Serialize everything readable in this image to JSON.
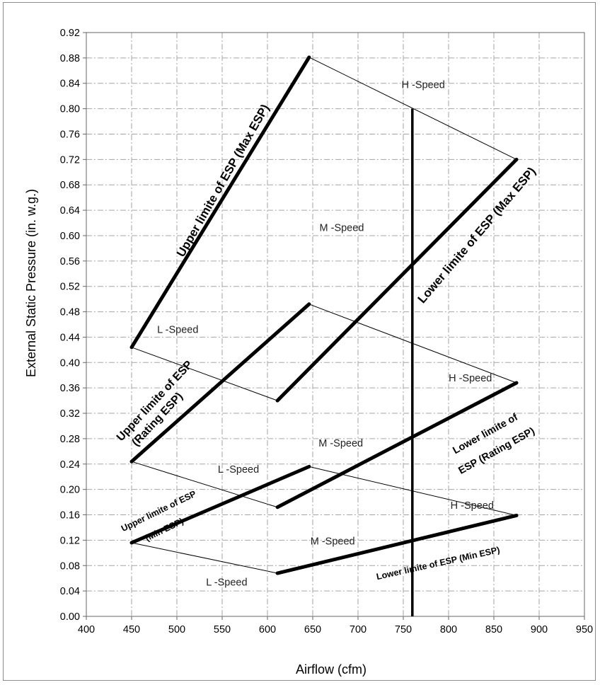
{
  "chart_data": {
    "type": "line",
    "title": "",
    "xlabel": "Airflow (cfm)",
    "ylabel": "External Static Pressure (in. w.g.)",
    "xlim": [
      400,
      950
    ],
    "ylim": [
      0.0,
      0.92
    ],
    "xticks": [
      "400",
      "450",
      "500",
      "550",
      "600",
      "650",
      "700",
      "750",
      "800",
      "850",
      "900",
      "950"
    ],
    "yticks": [
      "0.00",
      "0.04",
      "0.08",
      "0.12",
      "0.16",
      "0.20",
      "0.24",
      "0.28",
      "0.32",
      "0.36",
      "0.40",
      "0.44",
      "0.48",
      "0.52",
      "0.56",
      "0.60",
      "0.64",
      "0.68",
      "0.72",
      "0.76",
      "0.80",
      "0.84",
      "0.88",
      "0.92"
    ],
    "grid": true,
    "limit_lines": [
      {
        "label": "Upper limite of ESP (Max ESP)",
        "points": [
          [
            450,
            0.424
          ],
          [
            646,
            0.881
          ]
        ]
      },
      {
        "label": "Lower limite of ESP (Max ESP)",
        "points": [
          [
            611,
            0.34
          ],
          [
            875,
            0.72
          ]
        ]
      },
      {
        "label": "Upper limite of ESP (Rating ESP)",
        "points": [
          [
            450,
            0.244
          ],
          [
            646,
            0.492
          ]
        ]
      },
      {
        "label": "Lower limite of ESP (Rating ESP)",
        "points": [
          [
            611,
            0.172
          ],
          [
            875,
            0.368
          ]
        ]
      },
      {
        "label": "Upper limite of ESP (Min ESP)",
        "points": [
          [
            450,
            0.116
          ],
          [
            646,
            0.236
          ]
        ]
      },
      {
        "label": "Lower limite of ESP (Min ESP)",
        "points": [
          [
            611,
            0.068
          ],
          [
            875,
            0.159
          ]
        ]
      }
    ],
    "fan_curves": [
      {
        "points": [
          [
            646,
            0.881
          ],
          [
            875,
            0.72
          ]
        ]
      },
      {
        "points": [
          [
            450,
            0.424
          ],
          [
            611,
            0.34
          ]
        ]
      },
      {
        "points": [
          [
            646,
            0.492
          ],
          [
            875,
            0.368
          ]
        ]
      },
      {
        "points": [
          [
            450,
            0.244
          ],
          [
            611,
            0.172
          ]
        ]
      },
      {
        "points": [
          [
            646,
            0.236
          ],
          [
            875,
            0.159
          ]
        ]
      },
      {
        "points": [
          [
            450,
            0.116
          ],
          [
            611,
            0.068
          ]
        ]
      }
    ],
    "vertical_line": {
      "x": 760,
      "y_range": [
        0.0,
        0.8
      ]
    },
    "speed_labels": [
      {
        "text": "H -Speed",
        "x": 772,
        "y": 0.838
      },
      {
        "text": "M -Speed",
        "x": 682,
        "y": 0.613
      },
      {
        "text": "L -Speed",
        "x": 501,
        "y": 0.452
      },
      {
        "text": "H -Speed",
        "x": 824,
        "y": 0.376
      },
      {
        "text": "M -Speed",
        "x": 681,
        "y": 0.273
      },
      {
        "text": "L -Speed",
        "x": 568,
        "y": 0.232
      },
      {
        "text": "H -Speed",
        "x": 826,
        "y": 0.175
      },
      {
        "text": "M -Speed",
        "x": 672,
        "y": 0.119
      },
      {
        "text": "L -Speed",
        "x": 555,
        "y": 0.054
      }
    ]
  },
  "annotations": {
    "max_upper": "Upper limite of ESP (Max ESP)",
    "max_lower": "Lower limite of ESP (Max ESP)",
    "rating_upper_1": "Upper limite of ESP",
    "rating_upper_2": "(Rating ESP)",
    "rating_lower_1": "Lower limite of",
    "rating_lower_2": "ESP (Rating ESP)",
    "min_upper_1": "Upper limite of ESP",
    "min_upper_2": "(Min ESP)",
    "min_lower": "Lower limite of ESP (Min ESP)"
  }
}
